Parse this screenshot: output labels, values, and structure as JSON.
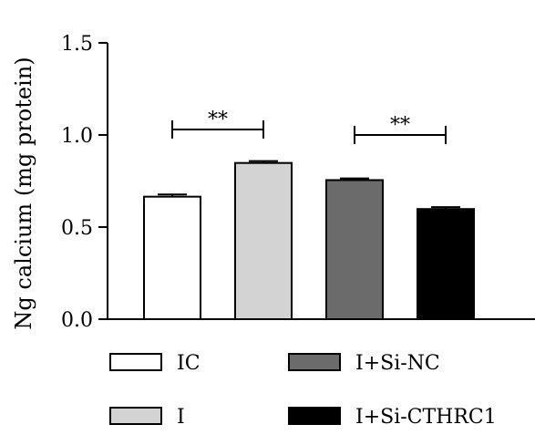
{
  "chart_data": {
    "type": "bar",
    "title": "",
    "xlabel": "",
    "ylabel": "Ng calcium (mg protein)",
    "ylim": [
      0,
      1.5
    ],
    "y_ticks": [
      0.0,
      0.5,
      1.0,
      1.5
    ],
    "y_tick_labels": [
      "0.0",
      "0.5",
      "1.0",
      "1.5"
    ],
    "categories": [
      "IC",
      "I",
      "I+Si-NC",
      "I+Si-CTHRC1"
    ],
    "values": [
      0.665,
      0.848,
      0.755,
      0.598
    ],
    "errors": [
      0.012,
      0.01,
      0.009,
      0.01
    ],
    "colors": [
      "#ffffff",
      "#d3d3d3",
      "#6b6b6b",
      "#000000"
    ],
    "significance": [
      {
        "from": 0,
        "to": 1,
        "label": "**",
        "y": 1.03
      },
      {
        "from": 2,
        "to": 3,
        "label": "**",
        "y": 1.0
      }
    ],
    "legend": {
      "placement": "bottom",
      "entries": [
        {
          "label": "IC",
          "color": "#ffffff"
        },
        {
          "label": "I+Si-NC",
          "color": "#6b6b6b"
        },
        {
          "label": "I",
          "color": "#d3d3d3"
        },
        {
          "label": "I+Si-CTHRC1",
          "color": "#000000"
        }
      ]
    },
    "grid": false
  }
}
